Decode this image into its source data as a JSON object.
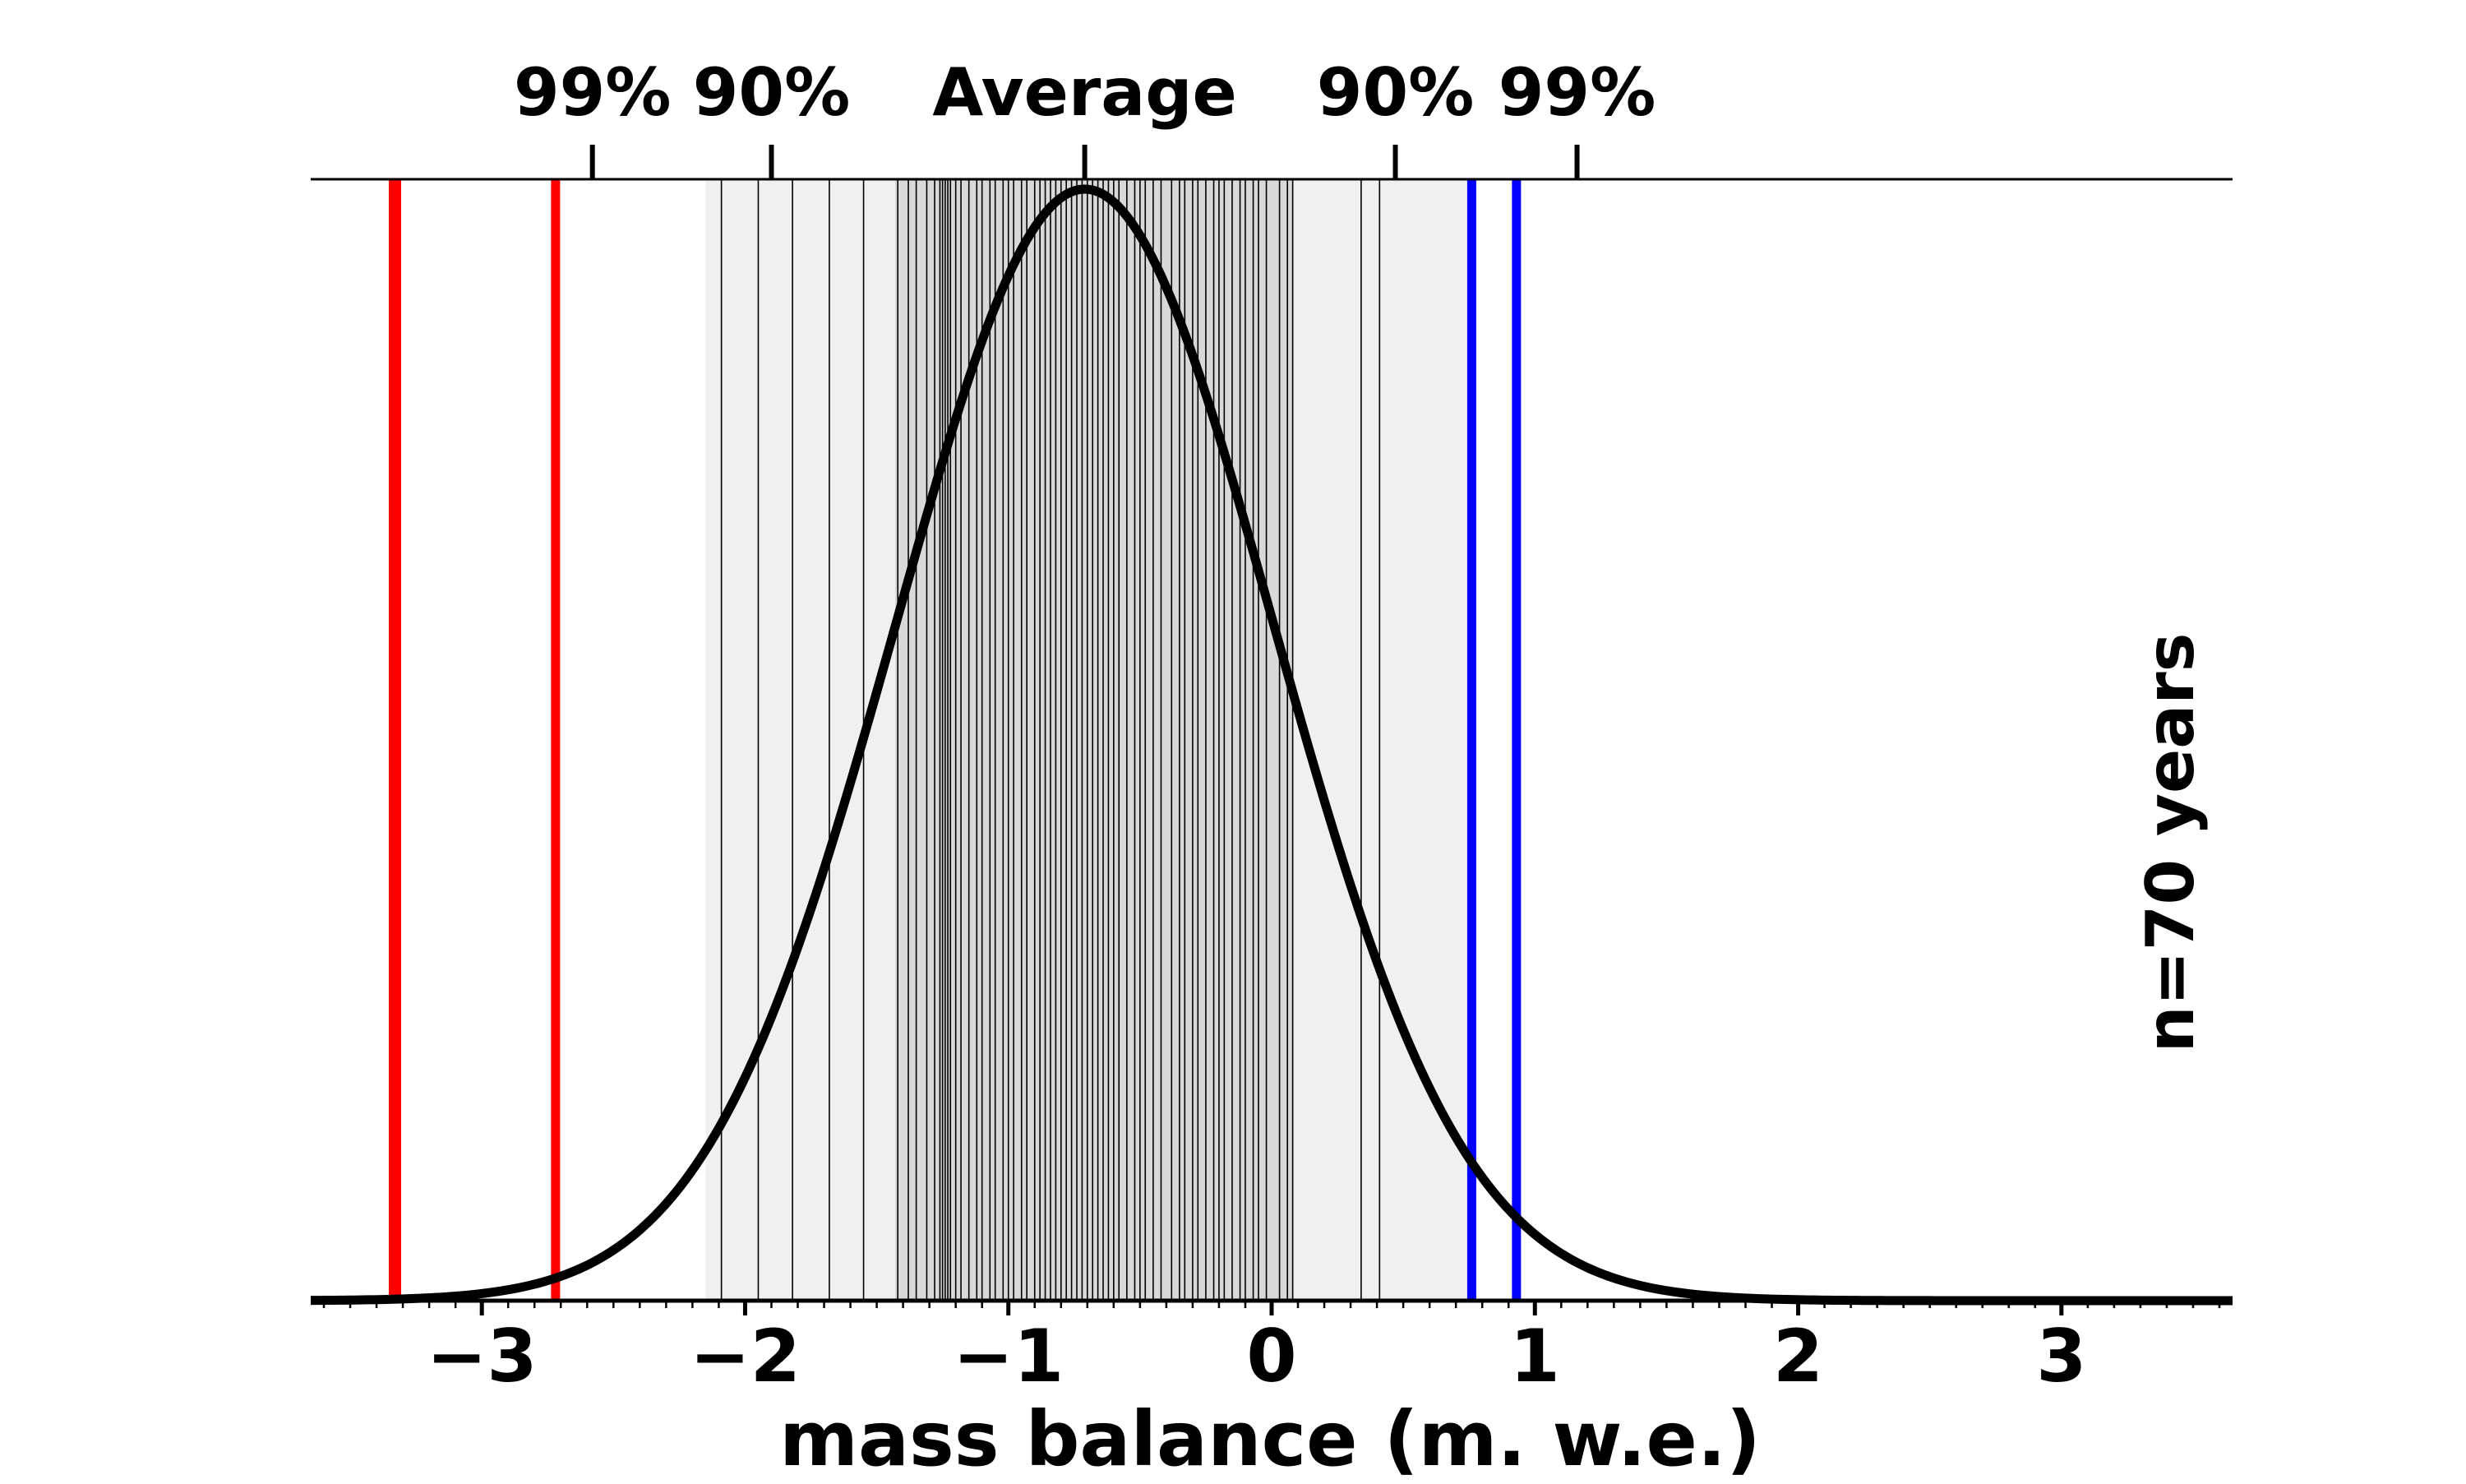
{
  "chart_data": {
    "type": "line",
    "xlabel": "mass balance (m. w.e.)",
    "annotation": "n=70 years",
    "xlim": [
      -3.65,
      3.65
    ],
    "x_ticks": [
      -3,
      -2,
      -1,
      0,
      1,
      2,
      3
    ],
    "x_tick_labels": [
      "−3",
      "−2",
      "−1",
      "0",
      "1",
      "2",
      "3"
    ],
    "x_minor_step": 0.1,
    "top_axis_ticks": [
      {
        "label": "99%",
        "x": -2.58
      },
      {
        "label": "90%",
        "x": -1.9
      },
      {
        "label": "Average",
        "x": -0.71
      },
      {
        "label": "90%",
        "x": 0.47
      },
      {
        "label": "99%",
        "x": 1.16
      }
    ],
    "normal_curve": {
      "mean": -0.71,
      "sd": 0.72,
      "color": "#000000"
    },
    "year_values": [
      -2.09,
      -1.95,
      -1.82,
      -1.68,
      -1.55,
      -1.42,
      -1.38,
      -1.35,
      -1.31,
      -1.28,
      -1.26,
      -1.25,
      -1.24,
      -1.23,
      -1.22,
      -1.2,
      -1.18,
      -1.15,
      -1.12,
      -1.1,
      -1.07,
      -1.05,
      -1.02,
      -1.0,
      -0.98,
      -0.95,
      -0.93,
      -0.9,
      -0.88,
      -0.86,
      -0.84,
      -0.82,
      -0.8,
      -0.78,
      -0.76,
      -0.74,
      -0.72,
      -0.7,
      -0.68,
      -0.66,
      -0.64,
      -0.62,
      -0.6,
      -0.58,
      -0.55,
      -0.52,
      -0.5,
      -0.48,
      -0.45,
      -0.42,
      -0.38,
      -0.35,
      -0.33,
      -0.3,
      -0.28,
      -0.25,
      -0.22,
      -0.2,
      -0.18,
      -0.15,
      -0.12,
      -0.1,
      -0.07,
      -0.05,
      -0.02,
      0.03,
      0.06,
      0.08,
      0.34,
      0.41
    ],
    "shaded_bands": [
      {
        "from": -2.15,
        "to": 0.75,
        "color": "#f0f0f0"
      },
      {
        "from": -1.43,
        "to": 0.08,
        "color": "#d9d9d9"
      }
    ],
    "extreme_lines": [
      {
        "x": -3.33,
        "color": "#ff0000",
        "width": "thick"
      },
      {
        "x": -2.72,
        "color": "#ff0000",
        "width": "normal"
      },
      {
        "x": 0.76,
        "color": "#0000ff",
        "width": "normal"
      },
      {
        "x": 0.93,
        "color": "#0000ff",
        "width": "normal"
      }
    ],
    "grid": false,
    "legend": "none"
  }
}
